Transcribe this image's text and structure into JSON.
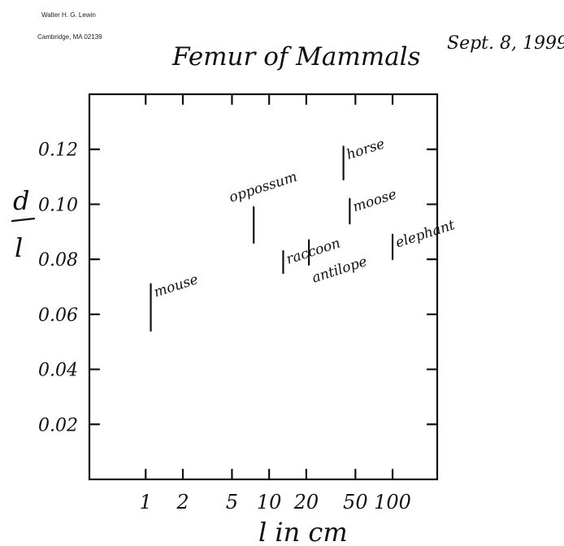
{
  "header": {
    "author": "Walter H. G. Lewin",
    "address": "Cambridge, MA 02139",
    "date": "Sept. 8, 1999"
  },
  "chart_data": {
    "type": "scatter",
    "title": "Femur of Mammals",
    "xlabel": "l in cm",
    "ylabel_numerator": "d",
    "ylabel_denominator": "l",
    "x_scale": "log",
    "xlim": [
      0.35,
      230
    ],
    "ylim": [
      0,
      0.14
    ],
    "x_ticks": [
      1,
      2,
      5,
      10,
      20,
      50,
      100
    ],
    "x_tick_labels": [
      "1",
      "2",
      "5",
      "10",
      "20",
      "50",
      "100"
    ],
    "y_ticks": [
      0.02,
      0.04,
      0.06,
      0.08,
      0.1,
      0.12
    ],
    "y_tick_labels": [
      "0.02",
      "0.04",
      "0.06",
      "0.08",
      "0.10",
      "0.12"
    ],
    "grid": false,
    "points": [
      {
        "name": "mouse",
        "x": 1.1,
        "y_low": 0.054,
        "y_high": 0.071
      },
      {
        "name": "oppossum",
        "x": 7.5,
        "y_low": 0.086,
        "y_high": 0.099
      },
      {
        "name": "raccoon",
        "x": 13,
        "y_low": 0.075,
        "y_high": 0.083
      },
      {
        "name": "antilope",
        "x": 21,
        "y_low": 0.078,
        "y_high": 0.087
      },
      {
        "name": "horse",
        "x": 40,
        "y_low": 0.109,
        "y_high": 0.121
      },
      {
        "name": "moose",
        "x": 45,
        "y_low": 0.093,
        "y_high": 0.102
      },
      {
        "name": "elephant",
        "x": 100,
        "y_low": 0.08,
        "y_high": 0.089
      }
    ]
  }
}
